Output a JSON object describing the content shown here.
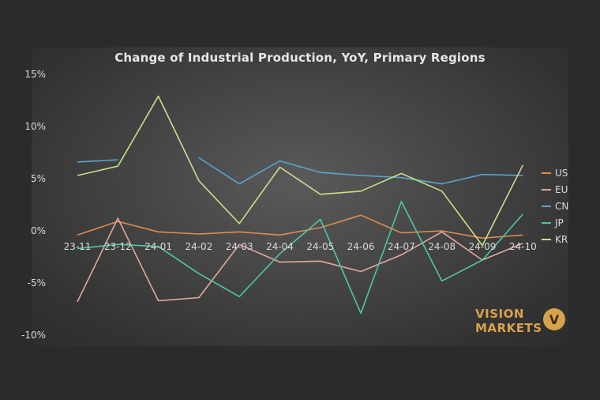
{
  "chart_data": {
    "type": "line",
    "title": "Change of Industrial Production, YoY, Primary Regions",
    "categories": [
      "23-11",
      "23-12",
      "24-01",
      "24-02",
      "24-03",
      "24-04",
      "24-05",
      "24-06",
      "24-07",
      "24-08",
      "24-09",
      "24-10"
    ],
    "ylim": [
      -10,
      15
    ],
    "yticks": [
      -10,
      -5,
      0,
      5,
      10,
      15
    ],
    "ytick_labels": [
      "-10%",
      "-5%",
      "0%",
      "5%",
      "10%",
      "15%"
    ],
    "grid": false,
    "legend_position": "right",
    "series": [
      {
        "name": "US",
        "color": "#e08a4e",
        "values": [
          -0.4,
          0.9,
          -0.1,
          -0.3,
          -0.1,
          -0.4,
          0.3,
          1.5,
          -0.2,
          0.0,
          -0.7,
          -0.4
        ]
      },
      {
        "name": "EU",
        "color": "#e4a79d",
        "values": [
          -6.8,
          1.2,
          -6.7,
          -6.4,
          -1.3,
          -3.0,
          -2.9,
          -3.9,
          -2.3,
          -0.1,
          -2.8,
          -1.2
        ]
      },
      {
        "name": "CN",
        "color": "#5ba3cf",
        "values": [
          6.6,
          6.8,
          null,
          7.0,
          4.5,
          6.7,
          5.6,
          5.3,
          5.1,
          4.5,
          5.4,
          5.3
        ]
      },
      {
        "name": "JP",
        "color": "#4fc7a6",
        "values": [
          -1.7,
          -1.3,
          -1.5,
          -4.1,
          -6.3,
          -2.2,
          1.1,
          -7.9,
          2.8,
          -4.8,
          -2.8,
          1.6
        ]
      },
      {
        "name": "KR",
        "color": "#c9df8a",
        "values": [
          5.3,
          6.2,
          12.9,
          4.8,
          0.7,
          6.1,
          3.5,
          3.8,
          5.5,
          3.8,
          -1.4,
          6.3
        ]
      }
    ]
  },
  "branding": {
    "line1": "VISION",
    "line2": "MARKETS",
    "badge": "V"
  }
}
